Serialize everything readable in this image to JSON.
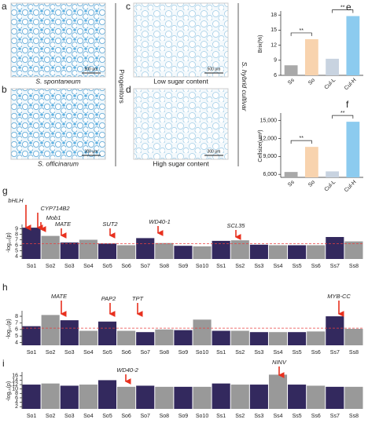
{
  "figure": {
    "panel_labels": [
      "a",
      "b",
      "c",
      "d",
      "e",
      "f",
      "g",
      "h",
      "i"
    ],
    "micrographs": [
      {
        "caption": "S. spontaneum",
        "scale_bar": "500 μm"
      },
      {
        "caption": "S. officinarum",
        "scale_bar": "300 μm"
      },
      {
        "caption": "Low sugar content",
        "scale_bar": "500 μm"
      },
      {
        "caption": "High sugar content",
        "scale_bar": "300 μm"
      }
    ],
    "group_labels": [
      "Progenitors",
      "S. hybrid cultivar"
    ]
  },
  "chart_data": [
    {
      "type": "bar",
      "y_label": "Brix(%)",
      "categories": [
        "Ss",
        "So",
        "Cul-L",
        "Cul-H"
      ],
      "values": [
        8,
        13.2,
        9.3,
        17.8
      ],
      "colors": [
        "#a9a9a9",
        "#f8d3ae",
        "#c8d3e0",
        "#8ccbef"
      ],
      "ylim": [
        6,
        18.5
      ],
      "yticks": [
        6,
        9,
        12,
        15,
        18
      ],
      "significance": [
        "**",
        "**"
      ]
    },
    {
      "type": "bar",
      "y_label": "Cellsize(um²)",
      "categories": [
        "Ss",
        "So",
        "Cul-L",
        "Cul-H"
      ],
      "values": [
        6400,
        10600,
        6500,
        14800
      ],
      "colors": [
        "#a9a9a9",
        "#f8d3ae",
        "#c8d3e0",
        "#8ccbef"
      ],
      "ylim": [
        5500,
        16000
      ],
      "yticks": [
        {
          "value": 6000,
          "label": "6,000"
        },
        {
          "value": 9000,
          "label": "9,000"
        },
        {
          "value": 12000,
          "label": "12,000"
        },
        {
          "value": 15000,
          "label": "15,000"
        }
      ],
      "significance": [
        "**",
        "**"
      ]
    },
    {
      "type": "manhattan",
      "y_label": "-log₁₀(p)",
      "categories": [
        "So1",
        "So2",
        "So3",
        "So4",
        "So5",
        "So6",
        "So7",
        "So8",
        "So9",
        "So10",
        "Ss1",
        "Ss2",
        "Ss3",
        "Ss4",
        "Ss5",
        "Ss6",
        "Ss7",
        "Ss8"
      ],
      "values": [
        9.2,
        7.7,
        6.5,
        7.0,
        6.3,
        6.0,
        7.3,
        6.4,
        5.9,
        5.8,
        6.8,
        6.9,
        6.1,
        6.0,
        6.0,
        6.0,
        7.5,
        6.7
      ],
      "colors": [
        "#33295e",
        "#999999"
      ],
      "threshold": 6.3,
      "threshold_color": "#e84040",
      "ylim": [
        3.5,
        9.5
      ],
      "yticks": [
        4,
        5,
        6,
        7,
        8,
        9
      ],
      "annotations": [
        "bHLH",
        "CYP714B2",
        "Mob1",
        "MATE",
        "SUT2",
        "WD40-1",
        "SCL35"
      ]
    },
    {
      "type": "manhattan",
      "y_label": "-log₁₀(p)",
      "categories": [
        "So1",
        "So2",
        "So3",
        "So4",
        "So5",
        "So6",
        "So7",
        "So8",
        "So9",
        "So10",
        "Ss1",
        "Ss2",
        "Ss3",
        "Ss4",
        "Ss5",
        "Ss6",
        "Ss7",
        "Ss8"
      ],
      "values": [
        6.5,
        8.2,
        7.4,
        5.8,
        7.2,
        5.8,
        5.6,
        6.0,
        5.9,
        7.5,
        5.8,
        5.8,
        5.6,
        5.6,
        5.6,
        5.7,
        8.0,
        6.1
      ],
      "colors": [
        "#33295e",
        "#999999"
      ],
      "threshold": 6.2,
      "threshold_color": "#e84040",
      "ylim": [
        3.6,
        8.6
      ],
      "yticks": [
        4,
        5,
        6,
        7,
        8
      ],
      "annotations": [
        "MATE",
        "PAP2",
        "TPT",
        "MYB-CC"
      ]
    },
    {
      "type": "manhattan",
      "y_label": "-log₁₀(p)",
      "categories": [
        "So1",
        "So2",
        "So3",
        "So4",
        "So5",
        "So6",
        "So7",
        "So8",
        "So9",
        "So10",
        "Ss1",
        "Ss2",
        "Ss3",
        "Ss4",
        "Ss5",
        "Ss6",
        "Ss7",
        "Ss8"
      ],
      "values": [
        12,
        12.5,
        11.5,
        12,
        14,
        11,
        11.5,
        11,
        11,
        11,
        12.5,
        12,
        12,
        16.5,
        12,
        11.5,
        11,
        11
      ],
      "colors": [
        "#33295e",
        "#999999"
      ],
      "ylim": [
        1,
        17
      ],
      "yticks": [
        2,
        4,
        6,
        8,
        10,
        12,
        14,
        16
      ],
      "annotations": [
        "WD40-2",
        "NINV"
      ]
    }
  ]
}
